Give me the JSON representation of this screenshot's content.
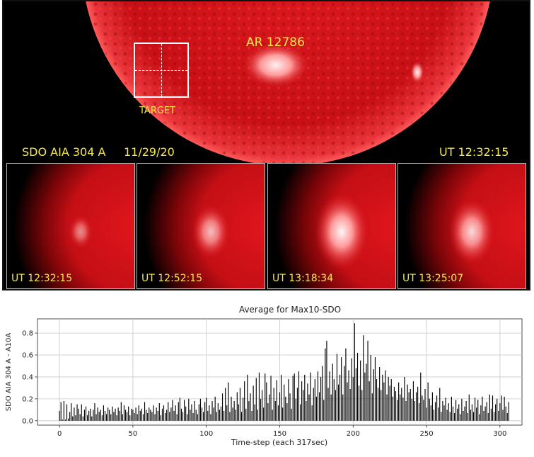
{
  "solar": {
    "active_region": "AR 12786",
    "target_label": "TARGET",
    "instrument": "SDO AIA 304 A",
    "date": "11/29/20",
    "time": "UT 12:32:15",
    "colors": {
      "sun": "#d8141a",
      "text": "#f5e94a",
      "background": "#000000"
    }
  },
  "thumbnails": [
    {
      "label": "UT 12:32:15",
      "flare": 0.25
    },
    {
      "label": "UT 12:52:15",
      "flare": 0.6
    },
    {
      "label": "UT 13:18:34",
      "flare": 1.0
    },
    {
      "label": "UT 13:25:07",
      "flare": 0.8
    }
  ],
  "chart_data": {
    "type": "bar",
    "title": "Average for Max10-SDO",
    "xlabel": "Time-step (each 317sec)",
    "ylabel": "SDO AIA 304 A - A10A",
    "xlim": [
      -15,
      315
    ],
    "ylim": [
      -0.04,
      0.93
    ],
    "xticks": [
      0,
      50,
      100,
      150,
      200,
      250,
      300
    ],
    "yticks": [
      0.0,
      0.2,
      0.4,
      0.6,
      0.8
    ],
    "grid": true,
    "bar_color": "#000000",
    "x_start": 0,
    "values": [
      0.09,
      0.17,
      0.01,
      0.18,
      0.01,
      0.15,
      0.02,
      0.08,
      0.16,
      0.04,
      0.12,
      0.05,
      0.15,
      0.11,
      0.06,
      0.15,
      0.04,
      0.1,
      0.13,
      0.05,
      0.09,
      0.11,
      0.04,
      0.1,
      0.16,
      0.06,
      0.12,
      0.08,
      0.1,
      0.05,
      0.14,
      0.09,
      0.06,
      0.12,
      0.1,
      0.06,
      0.13,
      0.08,
      0.11,
      0.05,
      0.12,
      0.09,
      0.17,
      0.06,
      0.14,
      0.1,
      0.08,
      0.13,
      0.05,
      0.11,
      0.1,
      0.07,
      0.12,
      0.06,
      0.14,
      0.09,
      0.11,
      0.06,
      0.17,
      0.1,
      0.07,
      0.12,
      0.1,
      0.08,
      0.14,
      0.06,
      0.12,
      0.09,
      0.16,
      0.05,
      0.11,
      0.14,
      0.07,
      0.1,
      0.17,
      0.08,
      0.12,
      0.19,
      0.09,
      0.14,
      0.06,
      0.17,
      0.21,
      0.11,
      0.08,
      0.19,
      0.13,
      0.06,
      0.2,
      0.1,
      0.15,
      0.07,
      0.18,
      0.1,
      0.06,
      0.15,
      0.2,
      0.12,
      0.08,
      0.17,
      0.21,
      0.09,
      0.14,
      0.06,
      0.18,
      0.12,
      0.22,
      0.08,
      0.16,
      0.1,
      0.13,
      0.25,
      0.09,
      0.3,
      0.14,
      0.35,
      0.08,
      0.22,
      0.12,
      0.18,
      0.1,
      0.26,
      0.15,
      0.3,
      0.08,
      0.21,
      0.36,
      0.11,
      0.42,
      0.18,
      0.25,
      0.09,
      0.32,
      0.15,
      0.39,
      0.1,
      0.44,
      0.2,
      0.28,
      0.12,
      0.43,
      0.35,
      0.16,
      0.24,
      0.41,
      0.1,
      0.3,
      0.18,
      0.37,
      0.14,
      0.26,
      0.42,
      0.12,
      0.33,
      0.22,
      0.16,
      0.38,
      0.25,
      0.11,
      0.41,
      0.43,
      0.2,
      0.3,
      0.45,
      0.15,
      0.36,
      0.28,
      0.42,
      0.18,
      0.34,
      0.24,
      0.44,
      0.14,
      0.3,
      0.38,
      0.22,
      0.45,
      0.26,
      0.4,
      0.5,
      0.19,
      0.66,
      0.73,
      0.3,
      0.45,
      0.24,
      0.52,
      0.38,
      0.28,
      0.61,
      0.33,
      0.42,
      0.58,
      0.24,
      0.5,
      0.66,
      0.35,
      0.46,
      0.29,
      0.57,
      0.4,
      0.89,
      0.48,
      0.62,
      0.32,
      0.55,
      0.28,
      0.78,
      0.44,
      0.52,
      0.73,
      0.36,
      0.6,
      0.25,
      0.47,
      0.58,
      0.38,
      0.3,
      0.49,
      0.28,
      0.42,
      0.35,
      0.46,
      0.24,
      0.4,
      0.32,
      0.38,
      0.22,
      0.31,
      0.27,
      0.19,
      0.35,
      0.24,
      0.3,
      0.21,
      0.4,
      0.18,
      0.33,
      0.26,
      0.29,
      0.2,
      0.36,
      0.18,
      0.26,
      0.31,
      0.16,
      0.44,
      0.23,
      0.19,
      0.29,
      0.12,
      0.35,
      0.2,
      0.14,
      0.26,
      0.1,
      0.17,
      0.23,
      0.12,
      0.3,
      0.08,
      0.18,
      0.14,
      0.21,
      0.1,
      0.16,
      0.08,
      0.22,
      0.13,
      0.07,
      0.19,
      0.11,
      0.15,
      0.06,
      0.2,
      0.09,
      0.13,
      0.18,
      0.07,
      0.24,
      0.1,
      0.15,
      0.08,
      0.21,
      0.12,
      0.19,
      0.06,
      0.14,
      0.22,
      0.09,
      0.13,
      0.17,
      0.07,
      0.24,
      0.11,
      0.23,
      0.08,
      0.15,
      0.2,
      0.09,
      0.16,
      0.23,
      0.1,
      0.22,
      0.13,
      0.07,
      0.17
    ]
  }
}
